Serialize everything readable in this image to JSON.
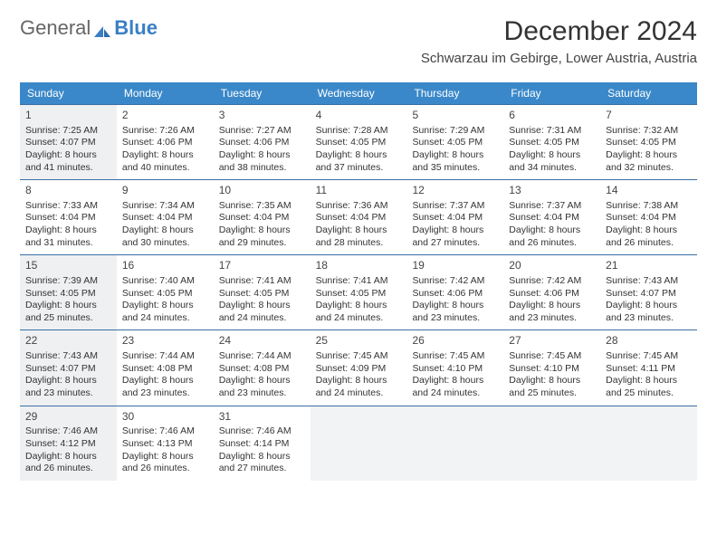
{
  "logo": {
    "text1": "General",
    "text2": "Blue"
  },
  "title": "December 2024",
  "location": "Schwarzau im Gebirge, Lower Austria, Austria",
  "colors": {
    "header_bg": "#3a88c9",
    "header_text": "#ffffff",
    "row_border": "#3a6fa5",
    "today_bg": "#eef0f1",
    "empty_bg": "#f2f3f4",
    "logo_accent": "#3a7fc4"
  },
  "day_names": [
    "Sunday",
    "Monday",
    "Tuesday",
    "Wednesday",
    "Thursday",
    "Friday",
    "Saturday"
  ],
  "weeks": [
    [
      {
        "n": "1",
        "today": true,
        "sunrise": "7:25 AM",
        "sunset": "4:07 PM",
        "daylight": "8 hours and 41 minutes."
      },
      {
        "n": "2",
        "sunrise": "7:26 AM",
        "sunset": "4:06 PM",
        "daylight": "8 hours and 40 minutes."
      },
      {
        "n": "3",
        "sunrise": "7:27 AM",
        "sunset": "4:06 PM",
        "daylight": "8 hours and 38 minutes."
      },
      {
        "n": "4",
        "sunrise": "7:28 AM",
        "sunset": "4:05 PM",
        "daylight": "8 hours and 37 minutes."
      },
      {
        "n": "5",
        "sunrise": "7:29 AM",
        "sunset": "4:05 PM",
        "daylight": "8 hours and 35 minutes."
      },
      {
        "n": "6",
        "sunrise": "7:31 AM",
        "sunset": "4:05 PM",
        "daylight": "8 hours and 34 minutes."
      },
      {
        "n": "7",
        "sunrise": "7:32 AM",
        "sunset": "4:05 PM",
        "daylight": "8 hours and 32 minutes."
      }
    ],
    [
      {
        "n": "8",
        "sunrise": "7:33 AM",
        "sunset": "4:04 PM",
        "daylight": "8 hours and 31 minutes."
      },
      {
        "n": "9",
        "sunrise": "7:34 AM",
        "sunset": "4:04 PM",
        "daylight": "8 hours and 30 minutes."
      },
      {
        "n": "10",
        "sunrise": "7:35 AM",
        "sunset": "4:04 PM",
        "daylight": "8 hours and 29 minutes."
      },
      {
        "n": "11",
        "sunrise": "7:36 AM",
        "sunset": "4:04 PM",
        "daylight": "8 hours and 28 minutes."
      },
      {
        "n": "12",
        "sunrise": "7:37 AM",
        "sunset": "4:04 PM",
        "daylight": "8 hours and 27 minutes."
      },
      {
        "n": "13",
        "sunrise": "7:37 AM",
        "sunset": "4:04 PM",
        "daylight": "8 hours and 26 minutes."
      },
      {
        "n": "14",
        "sunrise": "7:38 AM",
        "sunset": "4:04 PM",
        "daylight": "8 hours and 26 minutes."
      }
    ],
    [
      {
        "n": "15",
        "today": true,
        "sunrise": "7:39 AM",
        "sunset": "4:05 PM",
        "daylight": "8 hours and 25 minutes."
      },
      {
        "n": "16",
        "sunrise": "7:40 AM",
        "sunset": "4:05 PM",
        "daylight": "8 hours and 24 minutes."
      },
      {
        "n": "17",
        "sunrise": "7:41 AM",
        "sunset": "4:05 PM",
        "daylight": "8 hours and 24 minutes."
      },
      {
        "n": "18",
        "sunrise": "7:41 AM",
        "sunset": "4:05 PM",
        "daylight": "8 hours and 24 minutes."
      },
      {
        "n": "19",
        "sunrise": "7:42 AM",
        "sunset": "4:06 PM",
        "daylight": "8 hours and 23 minutes."
      },
      {
        "n": "20",
        "sunrise": "7:42 AM",
        "sunset": "4:06 PM",
        "daylight": "8 hours and 23 minutes."
      },
      {
        "n": "21",
        "sunrise": "7:43 AM",
        "sunset": "4:07 PM",
        "daylight": "8 hours and 23 minutes."
      }
    ],
    [
      {
        "n": "22",
        "today": true,
        "sunrise": "7:43 AM",
        "sunset": "4:07 PM",
        "daylight": "8 hours and 23 minutes."
      },
      {
        "n": "23",
        "sunrise": "7:44 AM",
        "sunset": "4:08 PM",
        "daylight": "8 hours and 23 minutes."
      },
      {
        "n": "24",
        "sunrise": "7:44 AM",
        "sunset": "4:08 PM",
        "daylight": "8 hours and 23 minutes."
      },
      {
        "n": "25",
        "sunrise": "7:45 AM",
        "sunset": "4:09 PM",
        "daylight": "8 hours and 24 minutes."
      },
      {
        "n": "26",
        "sunrise": "7:45 AM",
        "sunset": "4:10 PM",
        "daylight": "8 hours and 24 minutes."
      },
      {
        "n": "27",
        "sunrise": "7:45 AM",
        "sunset": "4:10 PM",
        "daylight": "8 hours and 25 minutes."
      },
      {
        "n": "28",
        "sunrise": "7:45 AM",
        "sunset": "4:11 PM",
        "daylight": "8 hours and 25 minutes."
      }
    ],
    [
      {
        "n": "29",
        "today": true,
        "sunrise": "7:46 AM",
        "sunset": "4:12 PM",
        "daylight": "8 hours and 26 minutes."
      },
      {
        "n": "30",
        "sunrise": "7:46 AM",
        "sunset": "4:13 PM",
        "daylight": "8 hours and 26 minutes."
      },
      {
        "n": "31",
        "sunrise": "7:46 AM",
        "sunset": "4:14 PM",
        "daylight": "8 hours and 27 minutes."
      },
      {
        "empty": true
      },
      {
        "empty": true
      },
      {
        "empty": true
      },
      {
        "empty": true
      }
    ]
  ],
  "labels": {
    "sunrise": "Sunrise:",
    "sunset": "Sunset:",
    "daylight": "Daylight:"
  }
}
